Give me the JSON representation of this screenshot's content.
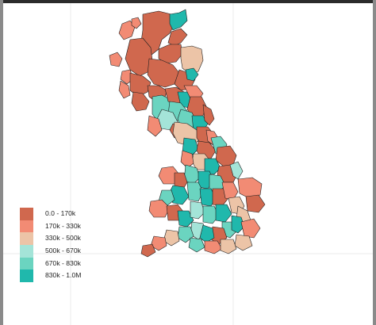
{
  "map": {
    "title": "",
    "background": "#ffffff",
    "grid": "on",
    "grid_color": "#ebebeb",
    "border_color": "#1f1f1f",
    "region_shape": "choropleth of Great Britain local authority / postcode areas"
  },
  "legend": {
    "position": "bottom-left",
    "items": [
      {
        "label": "0.0 - 170k",
        "color": "#d0684e"
      },
      {
        "label": "170k - 330k",
        "color": "#f28b74"
      },
      {
        "label": "330k - 500k",
        "color": "#ecc4a7"
      },
      {
        "label": "500k - 670k",
        "color": "#a4e4d8"
      },
      {
        "label": "670k - 830k",
        "color": "#6bd4c0"
      },
      {
        "label": "830k - 1.0M",
        "color": "#20b8ac"
      }
    ]
  }
}
